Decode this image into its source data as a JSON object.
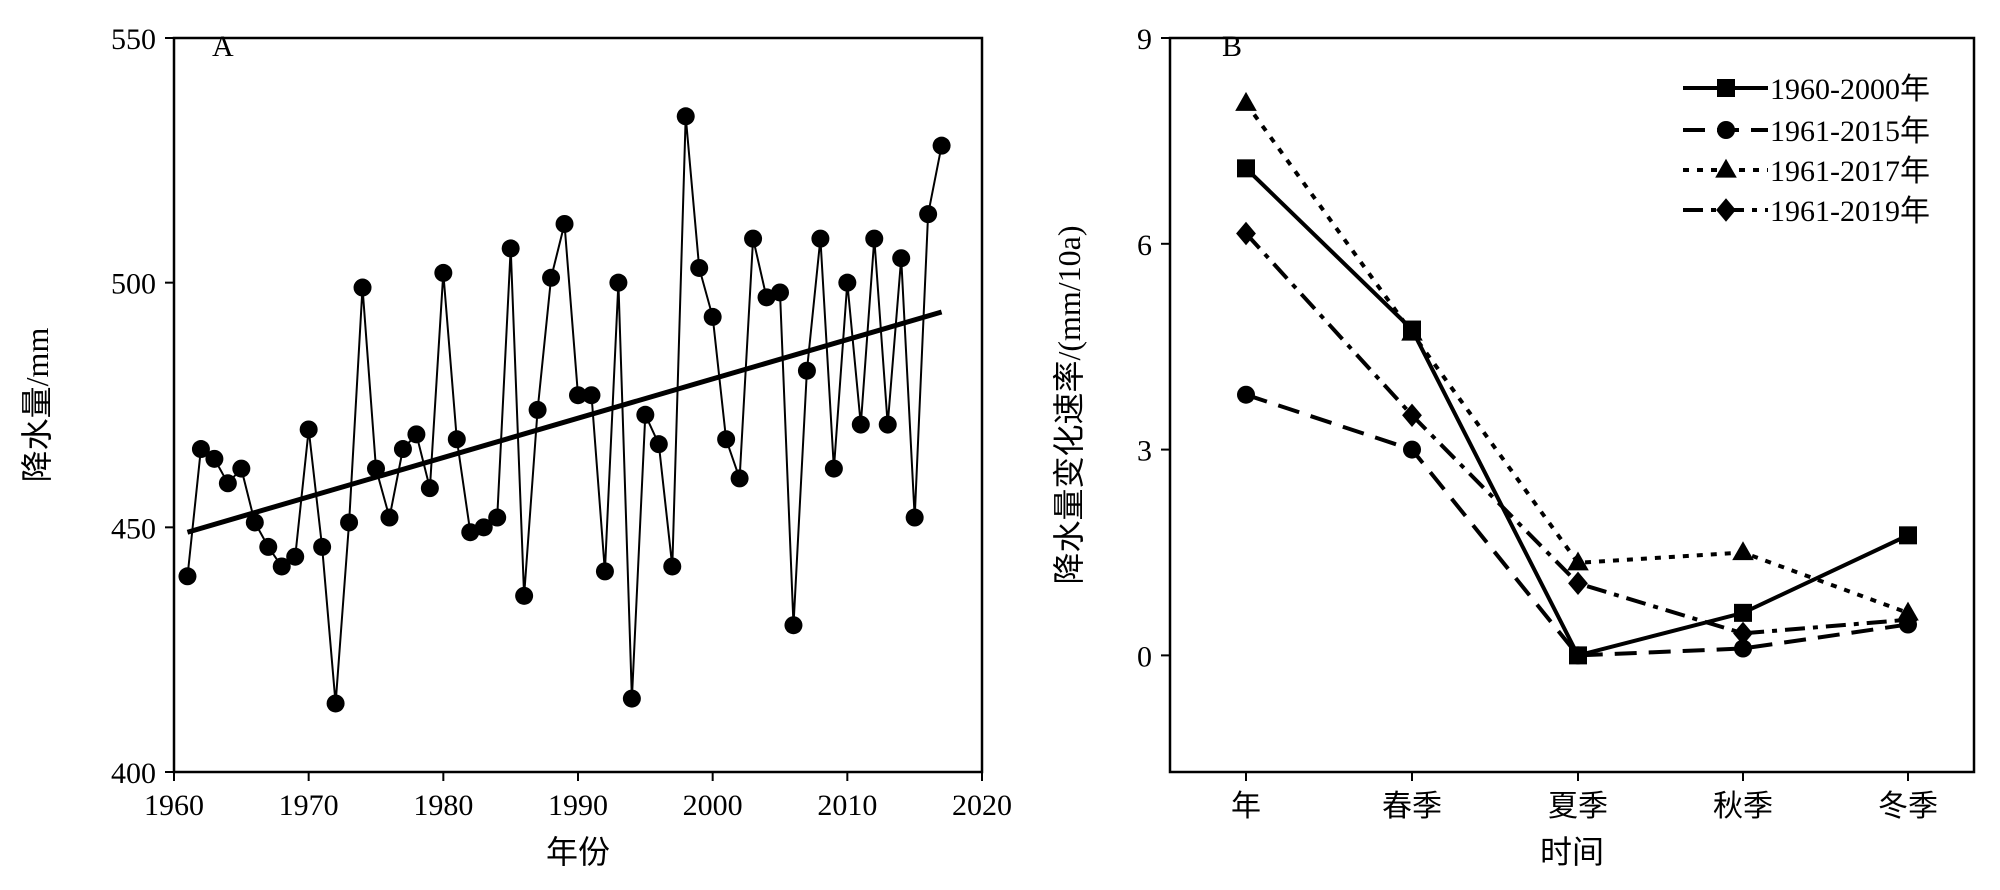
{
  "chart_data": [
    {
      "type": "scatter",
      "panel_label": "A",
      "xlabel": "年份",
      "ylabel": "降水量/mm",
      "xlim": [
        1960,
        2020
      ],
      "ylim": [
        400,
        550
      ],
      "x_ticks": [
        "1960",
        "1970",
        "1980",
        "1990",
        "2000",
        "2010",
        "2020"
      ],
      "y_ticks": [
        "400",
        "450",
        "500",
        "550"
      ],
      "series": [
        {
          "name": "降水量",
          "style": "line-with-circle-markers",
          "x": [
            1961,
            1962,
            1963,
            1964,
            1965,
            1966,
            1967,
            1968,
            1969,
            1970,
            1971,
            1972,
            1973,
            1974,
            1975,
            1976,
            1977,
            1978,
            1979,
            1980,
            1981,
            1982,
            1983,
            1984,
            1985,
            1986,
            1987,
            1988,
            1989,
            1990,
            1991,
            1992,
            1993,
            1994,
            1995,
            1996,
            1997,
            1998,
            1999,
            2000,
            2001,
            2002,
            2003,
            2004,
            2005,
            2006,
            2007,
            2008,
            2009,
            2010,
            2011,
            2012,
            2013,
            2014,
            2015,
            2016,
            2017
          ],
          "y": [
            440,
            466,
            464,
            459,
            462,
            451,
            446,
            442,
            444,
            470,
            446,
            414,
            451,
            499,
            462,
            452,
            466,
            469,
            458,
            502,
            468,
            449,
            450,
            452,
            507,
            436,
            474,
            501,
            512,
            477,
            477,
            441,
            500,
            415,
            473,
            467,
            442,
            534,
            503,
            493,
            468,
            460,
            509,
            497,
            498,
            430,
            482,
            509,
            462,
            500,
            471,
            509,
            471,
            505,
            452,
            514,
            528
          ]
        },
        {
          "name": "趋势线",
          "style": "thick-line",
          "x": [
            1961,
            2017
          ],
          "y": [
            449,
            494
          ]
        }
      ]
    },
    {
      "type": "line",
      "panel_label": "B",
      "xlabel": "时间",
      "ylabel": "降水量变化速率/(mm/10a)",
      "categories": [
        "年",
        "春季",
        "夏季",
        "秋季",
        "冬季"
      ],
      "ylim": [
        -1.7,
        9
      ],
      "y_ticks": [
        "0",
        "3",
        "6",
        "9"
      ],
      "legend_position": "top-right",
      "series": [
        {
          "name": "1960-2000年",
          "marker": "square",
          "dash": "solid",
          "values": [
            7.1,
            4.75,
            0.0,
            0.62,
            1.75
          ]
        },
        {
          "name": "1961-2015年",
          "marker": "circle",
          "dash": "long-dash",
          "values": [
            3.8,
            3.0,
            0.0,
            0.1,
            0.45
          ]
        },
        {
          "name": "1961-2017年",
          "marker": "triangle",
          "dash": "dotted",
          "values": [
            8.05,
            4.7,
            1.35,
            1.5,
            0.62
          ]
        },
        {
          "name": "1961-2019年",
          "marker": "diamond",
          "dash": "dash-dot",
          "values": [
            6.15,
            3.5,
            1.05,
            0.32,
            0.52
          ]
        }
      ]
    }
  ]
}
